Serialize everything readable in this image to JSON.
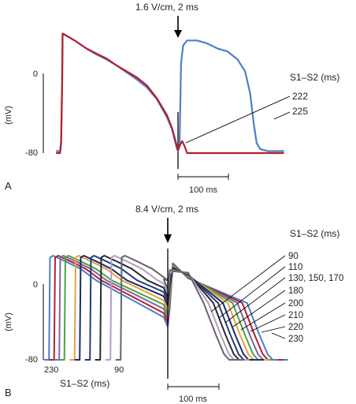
{
  "chart_data": [
    {
      "panel": "A",
      "type": "line",
      "xunit": "ms",
      "yunit": "mV",
      "ylabel": "(mV)",
      "ylim": [
        -90,
        45
      ],
      "yticks": [
        0,
        -80
      ],
      "scalebar_label": "100 ms",
      "scalebar_value": 100,
      "stimulus_label": "1.6 V/cm, 2 ms",
      "stimulus_time": 222,
      "legend_title": "S1–S2 (ms)",
      "series": [
        {
          "name": "222",
          "color": "#b5202e",
          "points": [
            [
              -20,
              -80
            ],
            [
              -12,
              -80
            ],
            [
              -10,
              -70
            ],
            [
              -8,
              -10
            ],
            [
              -7,
              40
            ],
            [
              0,
              38
            ],
            [
              20,
              32
            ],
            [
              40,
              25
            ],
            [
              60,
              20
            ],
            [
              80,
              15
            ],
            [
              100,
              8
            ],
            [
              120,
              2
            ],
            [
              140,
              -4
            ],
            [
              160,
              -12
            ],
            [
              180,
              -25
            ],
            [
              200,
              -42
            ],
            [
              210,
              -55
            ],
            [
              216,
              -66
            ],
            [
              220,
              -74
            ],
            [
              222,
              -77
            ],
            [
              226,
              -72
            ],
            [
              230,
              -68
            ],
            [
              234,
              -72
            ],
            [
              240,
              -80
            ],
            [
              260,
              -80
            ],
            [
              300,
              -80
            ],
            [
              340,
              -80
            ],
            [
              380,
              -80
            ],
            [
              420,
              -80
            ],
            [
              432,
              -80
            ]
          ]
        },
        {
          "name": "225",
          "color": "#4e7fc5",
          "points": [
            [
              -20,
              -78
            ],
            [
              -12,
              -78
            ],
            [
              -10,
              -68
            ],
            [
              -8,
              -10
            ],
            [
              -7,
              40
            ],
            [
              0,
              38
            ],
            [
              20,
              32
            ],
            [
              40,
              25
            ],
            [
              60,
              19
            ],
            [
              80,
              14
            ],
            [
              100,
              8
            ],
            [
              120,
              1
            ],
            [
              140,
              -6
            ],
            [
              160,
              -14
            ],
            [
              180,
              -26
            ],
            [
              200,
              -44
            ],
            [
              210,
              -56
            ],
            [
              216,
              -68
            ],
            [
              220,
              -76
            ],
            [
              222,
              -78
            ],
            [
              225,
              -70
            ],
            [
              228,
              10
            ],
            [
              232,
              28
            ],
            [
              240,
              33
            ],
            [
              260,
              33
            ],
            [
              280,
              30
            ],
            [
              300,
              25
            ],
            [
              320,
              22
            ],
            [
              340,
              14
            ],
            [
              355,
              2
            ],
            [
              365,
              -20
            ],
            [
              372,
              -50
            ],
            [
              378,
              -70
            ],
            [
              385,
              -76
            ],
            [
              400,
              -78
            ],
            [
              432,
              -78
            ]
          ]
        }
      ]
    },
    {
      "panel": "B",
      "type": "line",
      "xunit": "ms",
      "yunit": "mV",
      "ylabel": "(mV)",
      "ylim": [
        -85,
        40
      ],
      "yticks": [
        0,
        -80
      ],
      "scalebar_label": "100 ms",
      "scalebar_value": 100,
      "stimulus_label": "8.4 V/cm, 2 ms",
      "legend_title": "S1–S2 (ms)",
      "xaxis_label": "S1–S2 (ms)",
      "xaxis_ticks": [
        "230",
        "90"
      ],
      "legend_entries": [
        "90",
        "110",
        "130, 150, 170",
        "180",
        "200",
        "210",
        "220",
        "230"
      ],
      "series": [
        {
          "name": "230",
          "color": "#4e7fc5",
          "upstroke": -230,
          "plateau_peak": 28
        },
        {
          "name": "220",
          "color": "#b5202e",
          "upstroke": -220,
          "plateau_peak": 24
        },
        {
          "name": "210",
          "color": "#7a6a9a",
          "upstroke": -210,
          "plateau_peak": 20
        },
        {
          "name": "200",
          "color": "#4fa14a",
          "upstroke": -200,
          "plateau_peak": 16
        },
        {
          "name": "180",
          "color": "#e8a23c",
          "upstroke": -180,
          "plateau_peak": 12
        },
        {
          "name": "170",
          "color": "#1c2a6b",
          "upstroke": -170,
          "plateau_peak": 10
        },
        {
          "name": "150",
          "color": "#1f3f7a",
          "upstroke": -150,
          "plateau_peak": 8
        },
        {
          "name": "130",
          "color": "#2b2b2b",
          "upstroke": -130,
          "plateau_peak": 6
        },
        {
          "name": "110",
          "color": "#b79bc6",
          "upstroke": -110,
          "plateau_peak": 4
        },
        {
          "name": "90",
          "color": "#666666",
          "upstroke": -90,
          "plateau_peak": 2
        }
      ]
    }
  ],
  "panel_labels": {
    "a": "A",
    "b": "B"
  }
}
